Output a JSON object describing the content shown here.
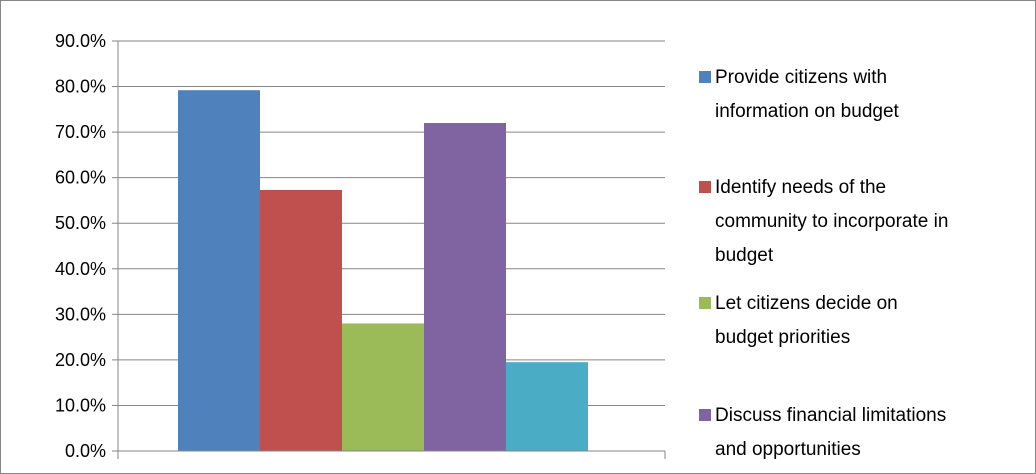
{
  "chart_data": {
    "type": "bar",
    "title": "",
    "xlabel": "",
    "ylabel": "",
    "ylim": [
      0,
      0.9
    ],
    "y_ticks": [
      "0.0%",
      "10.0%",
      "20.0%",
      "30.0%",
      "40.0%",
      "50.0%",
      "60.0%",
      "70.0%",
      "80.0%",
      "90.0%"
    ],
    "grid": true,
    "legend_position": "right",
    "series": [
      {
        "name": "Provide citizens with information on budget",
        "value": 0.792,
        "color": "#4F81BD"
      },
      {
        "name": "Identify needs of the community to incorporate in budget",
        "value": 0.573,
        "color": "#C0504D"
      },
      {
        "name": "Let citizens decide on budget priorities",
        "value": 0.28,
        "color": "#9BBB59"
      },
      {
        "name": "Discuss financial limitations and opportunities",
        "value": 0.72,
        "color": "#8064A2"
      },
      {
        "name": "",
        "value": 0.195,
        "color": "#4BACC6"
      }
    ],
    "legend": [
      {
        "lines": [
          "Provide citizens with",
          "information on budget"
        ],
        "color": "#4F81BD"
      },
      {
        "lines": [
          "Identify needs of the",
          "community to incorporate in",
          "budget"
        ],
        "color": "#C0504D"
      },
      {
        "lines": [
          "Let citizens decide on",
          "budget priorities"
        ],
        "color": "#9BBB59"
      },
      {
        "lines": [
          "Discuss financial limitations",
          "and opportunities"
        ],
        "color": "#8064A2"
      }
    ]
  }
}
